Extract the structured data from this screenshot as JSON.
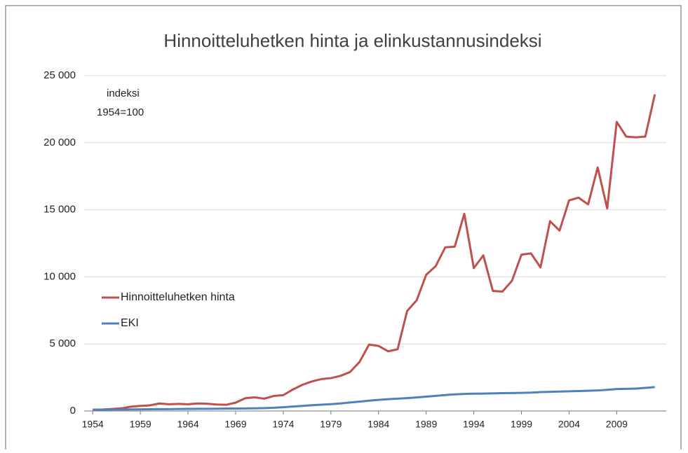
{
  "chart_data": {
    "type": "line",
    "title": "Hinnoitteluhetken hinta ja elinkustannusindeksi",
    "annotation": [
      "indeksi",
      "1954=100"
    ],
    "x": [
      1954,
      1955,
      1956,
      1957,
      1958,
      1959,
      1960,
      1961,
      1962,
      1963,
      1964,
      1965,
      1966,
      1967,
      1968,
      1969,
      1970,
      1971,
      1972,
      1973,
      1974,
      1975,
      1976,
      1977,
      1978,
      1979,
      1980,
      1981,
      1982,
      1983,
      1984,
      1985,
      1986,
      1987,
      1988,
      1989,
      1990,
      1991,
      1992,
      1993,
      1994,
      1995,
      1996,
      1997,
      1998,
      1999,
      2000,
      2001,
      2002,
      2003,
      2004,
      2005,
      2006,
      2007,
      2008,
      2009,
      2010,
      2011,
      2012,
      2013
    ],
    "series": [
      {
        "name": "Hinnoitteluhetken hinta",
        "color": "#c0504d",
        "values": [
          100,
          110,
          150,
          200,
          320,
          380,
          420,
          560,
          500,
          530,
          500,
          560,
          540,
          480,
          460,
          620,
          950,
          1020,
          920,
          1120,
          1180,
          1600,
          1950,
          2200,
          2380,
          2450,
          2620,
          2900,
          3650,
          4950,
          4850,
          4450,
          4600,
          7450,
          8250,
          10150,
          10800,
          12200,
          12250,
          14700,
          10650,
          11600,
          8950,
          8900,
          9700,
          11650,
          11750,
          10700,
          14150,
          13450,
          15700,
          15900,
          15400,
          18150,
          15100,
          21550,
          20450,
          20400,
          20450,
          23600
        ]
      },
      {
        "name": "EKI",
        "color": "#4f81bd",
        "values": [
          100,
          105,
          108,
          112,
          118,
          125,
          130,
          135,
          140,
          148,
          155,
          160,
          166,
          172,
          180,
          185,
          190,
          200,
          215,
          240,
          280,
          330,
          380,
          430,
          470,
          510,
          560,
          630,
          700,
          770,
          830,
          880,
          920,
          960,
          1010,
          1070,
          1130,
          1190,
          1240,
          1270,
          1290,
          1300,
          1310,
          1330,
          1340,
          1350,
          1370,
          1410,
          1430,
          1450,
          1470,
          1490,
          1510,
          1530,
          1580,
          1640,
          1650,
          1670,
          1720,
          1780
        ]
      }
    ],
    "xlim": [
      1953.1,
      2014.2
    ],
    "xticks": [
      1954,
      1959,
      1964,
      1969,
      1974,
      1979,
      1984,
      1989,
      1994,
      1999,
      2004,
      2009
    ],
    "ylim": [
      0,
      25000
    ],
    "yticks": [
      0,
      {
        "value": 5000,
        "label": "5 000"
      },
      {
        "value": 10000,
        "label": "10 000"
      },
      {
        "value": 15000,
        "label": "15 000"
      },
      {
        "value": 20000,
        "label": "20 000"
      },
      {
        "value": 25000,
        "label": "25 000"
      }
    ],
    "grid": true,
    "legend": "left"
  }
}
